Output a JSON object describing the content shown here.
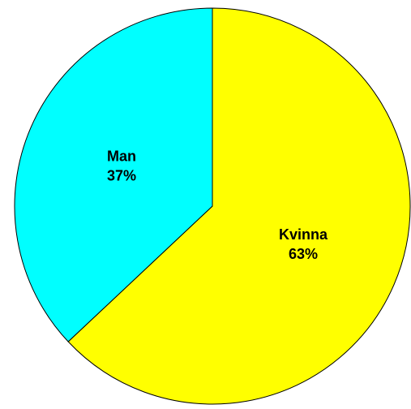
{
  "chart_data": {
    "type": "pie",
    "categories": [
      "Kvinna",
      "Man"
    ],
    "values": [
      63,
      37
    ],
    "value_labels": [
      "63%",
      "37%"
    ],
    "colors": [
      "#ffff00",
      "#00ffff"
    ]
  }
}
